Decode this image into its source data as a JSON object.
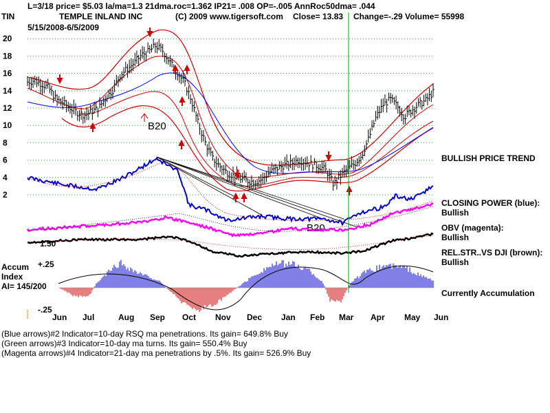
{
  "header": {
    "line1": "L=3/18  price= $5.03  la/ma=1.3 21dma.roc=1.362 IP21= .008 OP=-.005 AnnRoc50dma= .044",
    "ticker": "TIN",
    "company": "TEMPLE INLAND INC",
    "copyright": "(C) 2009 www.tigersoft.com",
    "close": "Close=  13.83",
    "change": "Change=-.29 Volume=  55998",
    "date_range": "5/15/2008-6/5/2009"
  },
  "chart_data": {
    "type": "line",
    "y_ticks": [
      "20",
      "18",
      "16",
      "14",
      "12",
      "10",
      "8",
      "6",
      "4",
      "2"
    ],
    "y_values": [
      20,
      18,
      16,
      14,
      12,
      10,
      8,
      6,
      4,
      2
    ],
    "ylim": [
      0,
      22
    ],
    "x_ticks": [
      "Jun",
      "Jul",
      "Aug",
      "Sep",
      "Oct",
      "Nov",
      "Dec",
      "Jan",
      "Feb",
      "Mar",
      "Apr",
      "May",
      "Jun"
    ],
    "marker_date": "Mar",
    "price_path": [
      15,
      15.2,
      14.8,
      14.3,
      13,
      12.6,
      12,
      11.5,
      11.2,
      11.6,
      12,
      13.2,
      14.1,
      15.8,
      16.5,
      17.2,
      18.1,
      18.5,
      19.2,
      18.6,
      17.3,
      16.2,
      15,
      13,
      10.2,
      8,
      6.2,
      5.3,
      4.6,
      4.2,
      3.9,
      3.6,
      3.5,
      3.8,
      4.6,
      5,
      5.4,
      5.6,
      6,
      5.8,
      5.5,
      5.3,
      4.8,
      3.2,
      4.2,
      5,
      5.6,
      6.6,
      8.6,
      11,
      12.4,
      13,
      12.2,
      11,
      11.8,
      12.4,
      12.9,
      13.8
    ],
    "annotations": {
      "b20_upper": "B20",
      "b20_lower": "B20",
      "volume_label": "1.50"
    },
    "series_labels": [
      {
        "text": "BULLISH PRICE TREND"
      },
      {
        "text": "CLOSING POWER (blue):"
      },
      {
        "text": "Bullish"
      },
      {
        "text": "OBV (magenta):"
      },
      {
        "text": "Bullish"
      },
      {
        "text": "REL.STR..VS DJI (brown):"
      },
      {
        "text": "Bullish"
      }
    ],
    "accum": {
      "title1": "Accum",
      "title2": "Index",
      "ai": "AI= 145/200",
      "upper": "+.25",
      "lower": "-.25",
      "status": "Currently Accumulation"
    },
    "colors": {
      "price": "#000000",
      "upper_band": "#cc0000",
      "ma": "#0000ff",
      "closing_power": "#0000cc",
      "obv": "#ff00ff",
      "rel_str": "#000000",
      "marker": "#00aa00",
      "grid": "#008000",
      "accum_pos": "#0000cc",
      "accum_neg": "#cc0000"
    }
  },
  "footer": {
    "line1": "(Blue arrows)#2 Indicator=10-day RSQ ma penetrations. Its gain= 649.8% Buy",
    "line2": "(Green arrows)#3 Indicator=10-day ma turns. Its gain= 550.4% Buy",
    "line3": "(Magenta arrows)#4 Indicator=21-day ma penetrations by .5%. Its gain= 526.9% Buy"
  }
}
